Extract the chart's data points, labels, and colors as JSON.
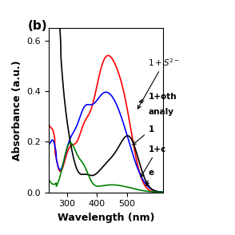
{
  "title": "(b)",
  "xlabel": "Wavelength (nm)",
  "ylabel": "Absorbance (a.u.)",
  "xlim": [
    240,
    620
  ],
  "ylim": [
    0.0,
    0.65
  ],
  "yticks": [
    0.0,
    0.2,
    0.4,
    0.6
  ],
  "xticks": [
    300,
    400,
    500
  ],
  "legend_labels": [
    "1+S²⁻",
    "1+oth\nanaly",
    "1",
    "1+c",
    "e"
  ],
  "legend_colors": [
    "red",
    "blue",
    "black",
    "black",
    "green"
  ],
  "background_color": "#ffffff"
}
